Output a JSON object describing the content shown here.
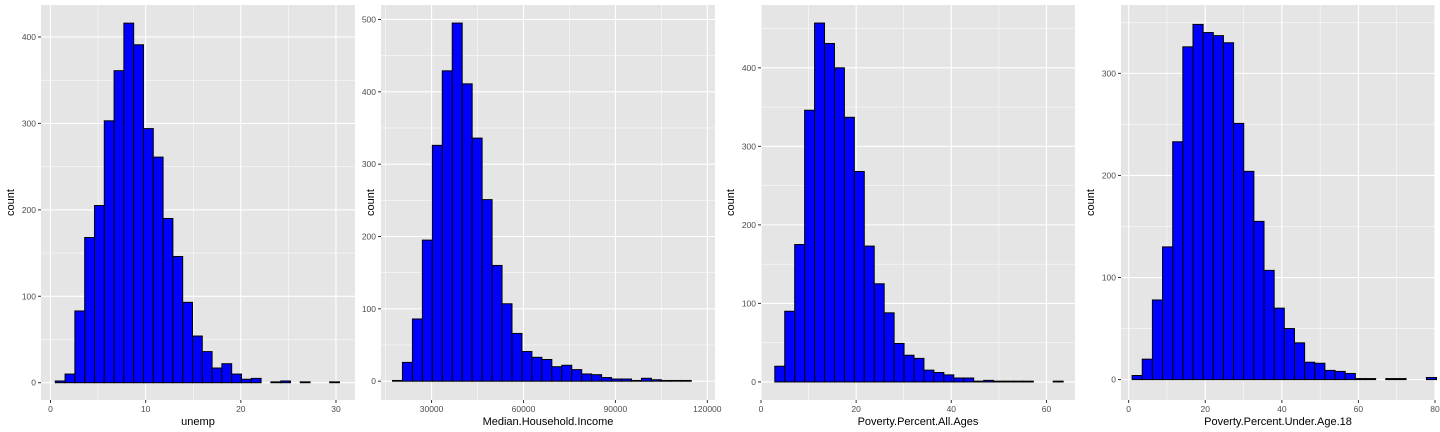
{
  "style": {
    "bar_fill": "#0000ff",
    "bar_outline": "#000000",
    "panel_bg": "#e5e5e5",
    "grid": "#ffffff"
  },
  "chart_data": [
    {
      "type": "bar",
      "xlabel": "unemp",
      "ylabel": "count",
      "bin_start": 0.5,
      "bin_width": 1.03,
      "xlim": [
        -1.0,
        32.0
      ],
      "ylim": [
        -20,
        437
      ],
      "xticks": [
        0,
        10,
        20,
        30
      ],
      "xtick_labels": [
        "0",
        "10",
        "20",
        "30"
      ],
      "yticks": [
        0,
        100,
        200,
        300,
        400
      ],
      "ytick_labels": [
        "0",
        "100",
        "200",
        "300",
        "400"
      ],
      "values": [
        2,
        10,
        83,
        168,
        205,
        303,
        361,
        416,
        391,
        294,
        261,
        190,
        146,
        93,
        54,
        36,
        17,
        22,
        10,
        4,
        5,
        0,
        1,
        2,
        0,
        1,
        0,
        0,
        1
      ]
    },
    {
      "type": "bar",
      "xlabel": "Median.Household.Income",
      "ylabel": "count",
      "bin_start": 17250,
      "bin_width": 3250,
      "xlim": [
        13500,
        122500
      ],
      "ylim": [
        -26,
        520
      ],
      "xticks": [
        30000,
        60000,
        90000,
        120000
      ],
      "xtick_labels": [
        "30000",
        "60000",
        "90000",
        "120000"
      ],
      "yticks": [
        0,
        100,
        200,
        300,
        400,
        500
      ],
      "ytick_labels": [
        "0",
        "100",
        "200",
        "300",
        "400",
        "500"
      ],
      "values": [
        1,
        26,
        86,
        195,
        326,
        429,
        495,
        411,
        336,
        251,
        160,
        107,
        66,
        41,
        33,
        30,
        20,
        22,
        16,
        10,
        9,
        5,
        3,
        3,
        1,
        4,
        2,
        1,
        1,
        1
      ]
    },
    {
      "type": "bar",
      "xlabel": "Poverty.Percent.All.Ages",
      "ylabel": "count",
      "bin_start": 2.9,
      "bin_width": 2.09,
      "xlim": [
        0.0,
        66.0
      ],
      "ylim": [
        -23,
        480
      ],
      "xticks": [
        0,
        20,
        40,
        60
      ],
      "xtick_labels": [
        "0",
        "20",
        "40",
        "60"
      ],
      "yticks": [
        0,
        100,
        200,
        300,
        400
      ],
      "ytick_labels": [
        "0",
        "100",
        "200",
        "300",
        "400"
      ],
      "values": [
        20,
        90,
        175,
        346,
        457,
        431,
        400,
        337,
        268,
        173,
        125,
        88,
        49,
        34,
        30,
        15,
        12,
        9,
        5,
        5,
        1,
        2,
        1,
        1,
        1,
        1,
        0,
        0,
        1
      ]
    },
    {
      "type": "bar",
      "xlabel": "Poverty.Percent.Under.Age.18",
      "ylabel": "count",
      "bin_start": 0.9,
      "bin_width": 2.65,
      "xlim": [
        -2.0,
        80.0
      ],
      "ylim": [
        -20,
        367
      ],
      "xticks": [
        0,
        20,
        40,
        60,
        80
      ],
      "xtick_labels": [
        "0",
        "20",
        "40",
        "60",
        "80"
      ],
      "yticks": [
        0,
        100,
        200,
        300
      ],
      "ytick_labels": [
        "0",
        "100",
        "200",
        "300"
      ],
      "values": [
        4,
        20,
        78,
        130,
        233,
        326,
        348,
        340,
        337,
        330,
        251,
        204,
        155,
        107,
        70,
        50,
        36,
        17,
        16,
        9,
        8,
        6,
        1,
        1,
        0,
        1,
        1,
        0,
        0,
        2
      ]
    }
  ]
}
